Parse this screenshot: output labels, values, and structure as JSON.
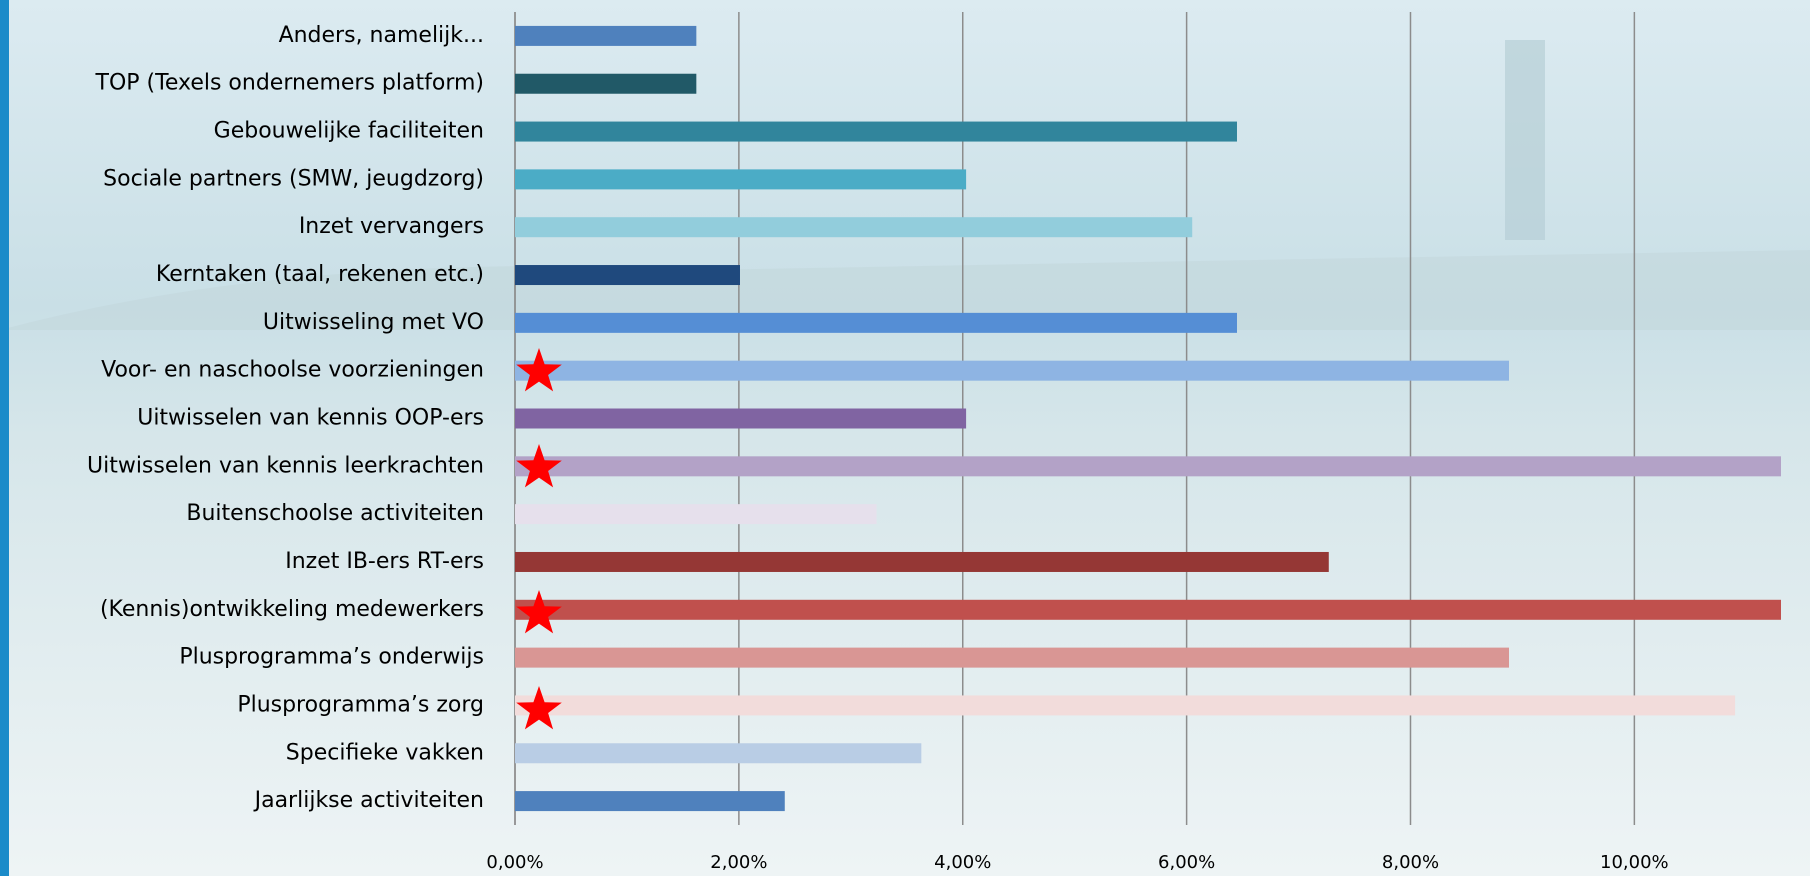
{
  "chart_data": {
    "type": "bar",
    "orientation": "horizontal",
    "categories": [
      "Anders, namelijk...",
      "TOP (Texels ondernemers platform)",
      "Gebouwelijke faciliteiten",
      "Sociale partners (SMW, jeugdzorg)",
      "Inzet vervangers",
      "Kerntaken (taal, rekenen etc.)",
      "Uitwisseling met VO",
      "Voor- en naschoolse voorzieningen",
      "Uitwisselen van kennis  OOP-ers",
      "Uitwisselen van kennis leerkrachten",
      "Buitenschoolse activiteiten",
      "Inzet IB-ers RT-ers",
      "(Kennis)ontwikkeling medewerkers",
      "Plusprogramma’s onderwijs",
      "Plusprogramma’s zorg",
      "Specifieke vakken",
      "Jaarlijkse activiteiten"
    ],
    "values": [
      1.62,
      1.62,
      6.45,
      4.03,
      6.05,
      2.01,
      6.45,
      8.88,
      4.03,
      11.31,
      3.23,
      7.27,
      11.31,
      8.88,
      10.9,
      3.63,
      2.41
    ],
    "colors": [
      "#4f81bd",
      "#215967",
      "#31859c",
      "#4bacc6",
      "#92cddc",
      "#1f497d",
      "#558ed5",
      "#8eb4e3",
      "#8064a2",
      "#b3a2c7",
      "#e6e0ec",
      "#953735",
      "#c0504d",
      "#d99694",
      "#f2dcdb",
      "#b9cde5",
      "#4f81bd"
    ],
    "xlim": [
      0,
      11.31
    ],
    "xticks": [
      {
        "value": 0,
        "label": "0,00%"
      },
      {
        "value": 2,
        "label": "2,00%"
      },
      {
        "value": 4,
        "label": "4,00%"
      },
      {
        "value": 6,
        "label": "6,00%"
      },
      {
        "value": 8,
        "label": "8,00%"
      },
      {
        "value": 10,
        "label": "10,00%"
      }
    ],
    "grid": true
  }
}
